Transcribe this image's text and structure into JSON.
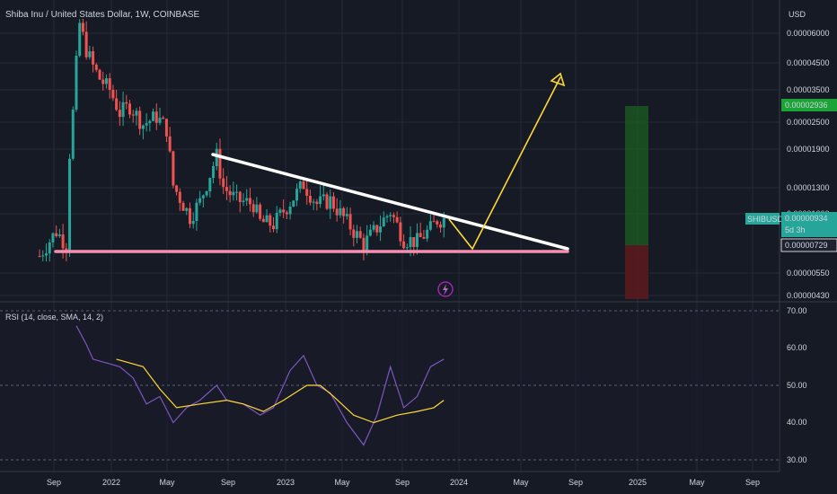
{
  "header": {
    "title": "Shiba Inu / United States Dollar, 1W, COINBASE",
    "currency": "USD"
  },
  "price_scale": {
    "ticks": [
      "0.00006000",
      "0.00004500",
      "0.00003500",
      "0.00002500",
      "0.00001900",
      "0.00001300",
      "0.00001000",
      "0.00000550",
      "0.00000430"
    ],
    "target_label": "0.00002936",
    "symbol_tag": "SHIBUSD",
    "current_price": "0.00000934",
    "countdown": "5d 3h",
    "stop_label": "0.00000729"
  },
  "rsi_panel": {
    "label": "RSI (14, close, SMA, 14, 2)",
    "ticks": [
      "70.00",
      "60.00",
      "50.00",
      "40.00",
      "30.00"
    ]
  },
  "time_axis": {
    "labels": [
      "Sep",
      "2022",
      "May",
      "Sep",
      "2023",
      "May",
      "Sep",
      "2024",
      "May",
      "Sep",
      "2025",
      "May",
      "Sep"
    ]
  },
  "colors": {
    "background": "#161a25",
    "up": "#26a69a",
    "down": "#ef5350",
    "trendline": "#ffffff",
    "support": "#f48fb1",
    "projection": "#ffeb3b",
    "rsi": "#7e57c2",
    "rsi_ma": "#fdd835",
    "target_zone": "#1b5e20",
    "stop_zone": "#5d1a1f"
  },
  "chart_data": [
    {
      "type": "candlestick",
      "title": "Shiba Inu / United States Dollar, 1W, COINBASE",
      "y_scale": "log",
      "ylim": [
        4.2e-06,
        6.6e-05
      ],
      "x_range": [
        "2021-08",
        "2025-09"
      ],
      "series_close": [
        [
          "2021-08-02",
          6.4e-06
        ],
        [
          "2021-08-16",
          7.1e-06
        ],
        [
          "2021-09-06",
          8.2e-06
        ],
        [
          "2021-09-27",
          7.2e-06
        ],
        [
          "2021-10-04",
          1.8e-05
        ],
        [
          "2021-10-11",
          2.7e-05
        ],
        [
          "2021-10-18",
          4.4e-05
        ],
        [
          "2021-10-25",
          6.6e-05
        ],
        [
          "2021-11-08",
          5.1e-05
        ],
        [
          "2021-11-22",
          4.3e-05
        ],
        [
          "2021-12-06",
          3.8e-05
        ],
        [
          "2021-12-27",
          3.4e-05
        ],
        [
          "2022-01-17",
          2.7e-05
        ],
        [
          "2022-02-07",
          2.9e-05
        ],
        [
          "2022-03-07",
          2.4e-05
        ],
        [
          "2022-04-04",
          2.6e-05
        ],
        [
          "2022-04-25",
          2.3e-05
        ],
        [
          "2022-05-09",
          1.3e-05
        ],
        [
          "2022-06-13",
          9.5e-06
        ],
        [
          "2022-07-04",
          1.1e-05
        ],
        [
          "2022-08-08",
          1.75e-05
        ],
        [
          "2022-08-22",
          1.28e-05
        ],
        [
          "2022-09-19",
          1.12e-05
        ],
        [
          "2022-10-24",
          1.08e-05
        ],
        [
          "2022-11-07",
          9e-06
        ],
        [
          "2022-12-05",
          8.8e-06
        ],
        [
          "2023-01-09",
          1.1e-05
        ],
        [
          "2023-02-06",
          1.32e-05
        ],
        [
          "2023-03-06",
          1.08e-05
        ],
        [
          "2023-04-03",
          1.12e-05
        ],
        [
          "2023-05-08",
          9e-06
        ],
        [
          "2023-06-12",
          7.2e-06
        ],
        [
          "2023-07-10",
          8.5e-06
        ],
        [
          "2023-08-07",
          1e-05
        ],
        [
          "2023-09-04",
          7.6e-06
        ],
        [
          "2023-10-02",
          7.4e-06
        ],
        [
          "2023-10-30",
          8.4e-06
        ],
        [
          "2023-11-13",
          9.2e-06
        ],
        [
          "2023-11-27",
          9.3e-06
        ]
      ],
      "annotations": {
        "descending_resistance": [
          [
            "2022-08-08",
            1.85e-05
          ],
          [
            "2024-08-26",
            7.2e-06
          ]
        ],
        "horizontal_support": 7e-06,
        "projection": [
          [
            "2023-11-27",
            9.6e-06
          ],
          [
            "2024-01-01",
            7.5e-06
          ],
          [
            "2024-08-26",
            4.5e-05
          ]
        ],
        "target": 2.936e-05,
        "entry": 9.34e-06,
        "stop": 7.29e-06
      }
    },
    {
      "type": "line",
      "title": "RSI (14, close, SMA, 14, 2)",
      "ylim": [
        28,
        72
      ],
      "series": [
        {
          "name": "RSI",
          "values": [
            [
              "2021-10-18",
              66
            ],
            [
              "2021-11-08",
              61
            ],
            [
              "2021-11-22",
              57
            ],
            [
              "2021-12-20",
              56
            ],
            [
              "2022-01-17",
              55
            ],
            [
              "2022-02-14",
              52
            ],
            [
              "2022-03-14",
              45
            ],
            [
              "2022-04-11",
              47
            ],
            [
              "2022-05-09",
              40
            ],
            [
              "2022-06-06",
              44
            ],
            [
              "2022-07-04",
              46
            ],
            [
              "2022-08-08",
              50
            ],
            [
              "2022-08-29",
              46
            ],
            [
              "2022-10-03",
              45
            ],
            [
              "2022-11-07",
              42
            ],
            [
              "2022-12-05",
              44
            ],
            [
              "2023-01-09",
              54
            ],
            [
              "2023-02-06",
              58
            ],
            [
              "2023-03-06",
              50
            ],
            [
              "2023-04-03",
              48
            ],
            [
              "2023-05-08",
              40
            ],
            [
              "2023-06-12",
              34
            ],
            [
              "2023-07-10",
              42
            ],
            [
              "2023-08-07",
              55
            ],
            [
              "2023-09-04",
              44
            ],
            [
              "2023-10-02",
              47
            ],
            [
              "2023-10-30",
              55
            ],
            [
              "2023-11-27",
              57
            ]
          ]
        },
        {
          "name": "RSI-based MA",
          "values": [
            [
              "2022-01-10",
              57
            ],
            [
              "2022-03-07",
              55
            ],
            [
              "2022-04-11",
              49
            ],
            [
              "2022-05-16",
              44
            ],
            [
              "2022-07-04",
              45
            ],
            [
              "2022-08-29",
              46
            ],
            [
              "2022-10-03",
              45
            ],
            [
              "2022-11-14",
              43
            ],
            [
              "2022-12-26",
              46
            ],
            [
              "2023-02-13",
              50
            ],
            [
              "2023-03-13",
              50
            ],
            [
              "2023-04-10",
              47
            ],
            [
              "2023-05-22",
              42
            ],
            [
              "2023-07-03",
              40
            ],
            [
              "2023-08-21",
              42
            ],
            [
              "2023-10-02",
              43
            ],
            [
              "2023-11-06",
              44
            ],
            [
              "2023-11-27",
              46
            ]
          ]
        }
      ]
    }
  ]
}
